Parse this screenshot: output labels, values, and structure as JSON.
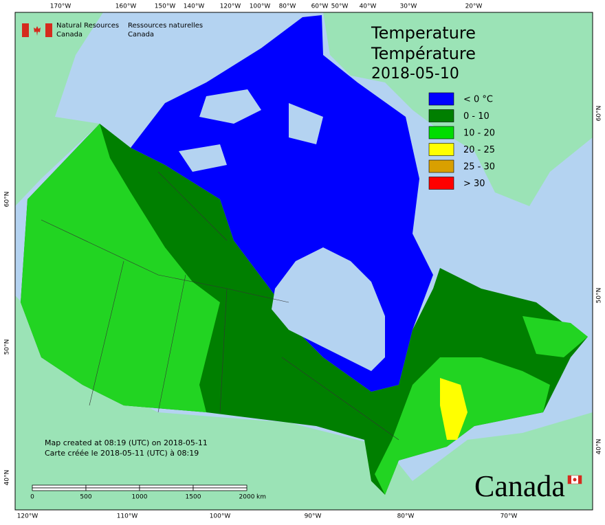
{
  "header": {
    "org_en": "Natural Resources",
    "org_en_2": "Canada",
    "org_fr": "Ressources naturelles",
    "org_fr_2": "Canada"
  },
  "title": {
    "en": "Temperature",
    "fr": "Température",
    "date": "2018-05-10"
  },
  "legend": [
    {
      "label": "< 0 °C",
      "color": "#0000ff"
    },
    {
      "label": "0 - 10",
      "color": "#007f00"
    },
    {
      "label": "10 - 20",
      "color": "#00dd00"
    },
    {
      "label": "20 - 25",
      "color": "#ffff00"
    },
    {
      "label": "25 - 30",
      "color": "#d9a000"
    },
    {
      "label": "> 30",
      "color": "#ff0000"
    }
  ],
  "top_labels": [
    "170°W",
    "160°W",
    "150°W",
    "140°W",
    "120°W",
    "100°W",
    "80°W",
    "60°W",
    "50°W",
    "40°W",
    "30°W",
    "20°W"
  ],
  "bottom_labels": [
    "120°W",
    "110°W",
    "100°W",
    "90°W",
    "80°W",
    "70°W"
  ],
  "left_labels": [
    "60°N",
    "50°N",
    "40°N"
  ],
  "right_labels": [
    "60°N",
    "50°N",
    "40°N"
  ],
  "notes": [
    "Map created at 08:19 (UTC) on 2018-05-11",
    "Carte créée le 2018-05-11 (UTC) à 08:19"
  ],
  "scale": {
    "ticks": [
      0,
      500,
      1000,
      1500,
      2000
    ],
    "unit": "km"
  },
  "wordmark": "Canada"
}
